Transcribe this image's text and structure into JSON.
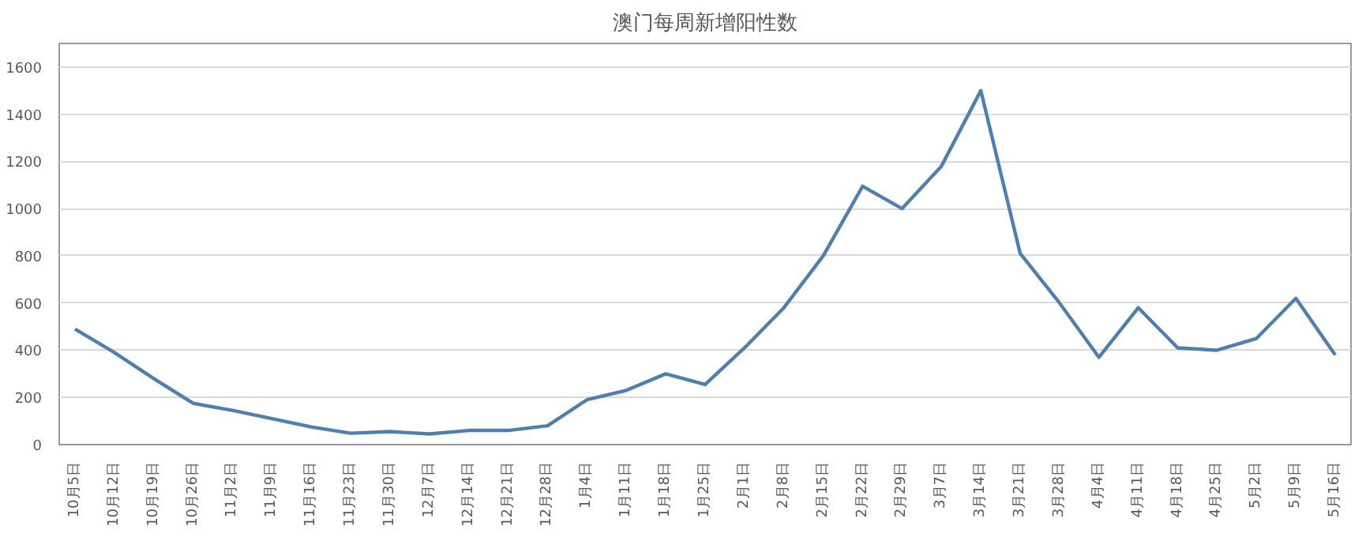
{
  "chart_data": {
    "type": "line",
    "title": "澳门每周新增阳性数",
    "categories": [
      "10月5日",
      "10月12日",
      "10月19日",
      "10月26日",
      "11月2日",
      "11月9日",
      "11月16日",
      "11月23日",
      "11月30日",
      "12月7日",
      "12月14日",
      "12月21日",
      "12月28日",
      "1月4日",
      "1月11日",
      "1月18日",
      "1月25日",
      "2月1日",
      "2月8日",
      "2月15日",
      "2月22日",
      "2月29日",
      "3月7日",
      "3月14日",
      "3月21日",
      "3月28日",
      "4月4日",
      "4月11日",
      "4月18日",
      "4月25日",
      "5月2日",
      "5月9日",
      "5月16日"
    ],
    "series": [
      {
        "color": "#4e7fae",
        "values": [
          490,
          390,
          280,
          175,
          145,
          110,
          75,
          48,
          55,
          45,
          60,
          60,
          80,
          190,
          230,
          300,
          255,
          410,
          580,
          800,
          1095,
          1000,
          1180,
          1500,
          810,
          600,
          370,
          580,
          410,
          400,
          450,
          620,
          380
        ]
      }
    ],
    "ylim": [
      0,
      1700
    ],
    "yticks": [
      0,
      200,
      400,
      600,
      800,
      1000,
      1200,
      1400,
      1600
    ],
    "grid": "y",
    "marker": "none",
    "line_style": "solid"
  }
}
